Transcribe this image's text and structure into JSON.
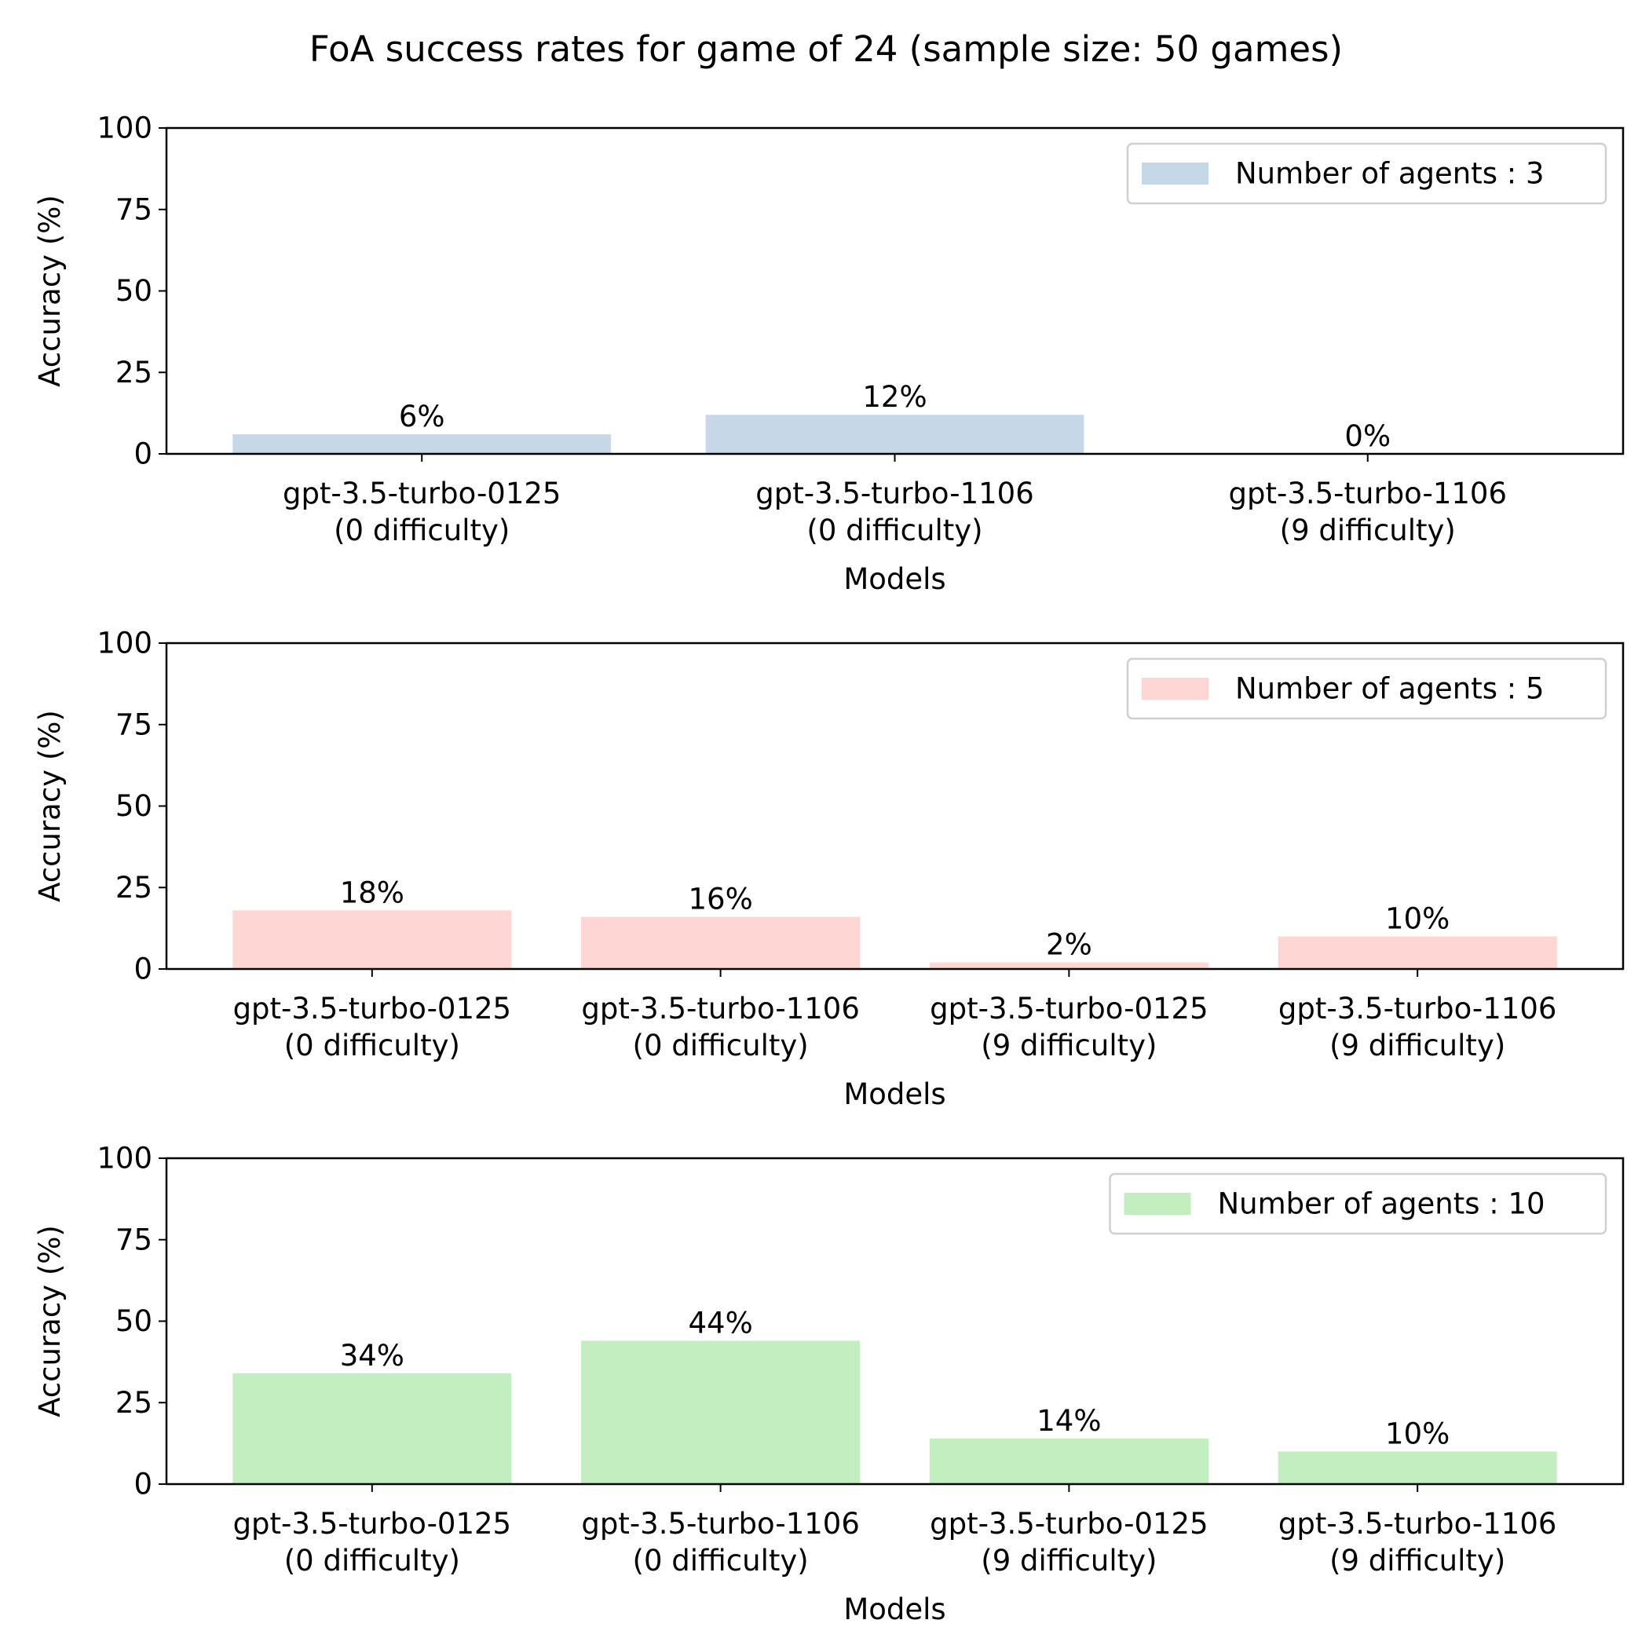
{
  "figure": {
    "title": "FoA success rates for game of 24 (sample size: 50 games)"
  },
  "chart_data": [
    {
      "type": "bar",
      "title": "",
      "xlabel": "Models",
      "ylabel": "Accuracy (%)",
      "ylim": [
        0,
        100
      ],
      "yticks": [
        "0",
        "25",
        "50",
        "75",
        "100"
      ],
      "grid": false,
      "legend_position": "top-right",
      "categories": [
        [
          "gpt-3.5-turbo-0125",
          "(0 difficulty)"
        ],
        [
          "gpt-3.5-turbo-1106",
          "(0 difficulty)"
        ],
        [
          "gpt-3.5-turbo-1106",
          "(9 difficulty)"
        ]
      ],
      "series": [
        {
          "name": "Number of agents : 3",
          "color": "#c6d8e8",
          "values": [
            6,
            12,
            0
          ],
          "labels": [
            "6%",
            "12%",
            "0%"
          ]
        }
      ]
    },
    {
      "type": "bar",
      "title": "",
      "xlabel": "Models",
      "ylabel": "Accuracy (%)",
      "ylim": [
        0,
        100
      ],
      "yticks": [
        "0",
        "25",
        "50",
        "75",
        "100"
      ],
      "grid": false,
      "legend_position": "top-right",
      "categories": [
        [
          "gpt-3.5-turbo-0125",
          "(0 difficulty)"
        ],
        [
          "gpt-3.5-turbo-1106",
          "(0 difficulty)"
        ],
        [
          "gpt-3.5-turbo-0125",
          "(9 difficulty)"
        ],
        [
          "gpt-3.5-turbo-1106",
          "(9 difficulty)"
        ]
      ],
      "series": [
        {
          "name": "Number of agents : 5",
          "color": "#fed7d4",
          "values": [
            18,
            16,
            2,
            10
          ],
          "labels": [
            "18%",
            "16%",
            "2%",
            "10%"
          ]
        }
      ]
    },
    {
      "type": "bar",
      "title": "",
      "xlabel": "Models",
      "ylabel": "Accuracy (%)",
      "ylim": [
        0,
        100
      ],
      "yticks": [
        "0",
        "25",
        "50",
        "75",
        "100"
      ],
      "grid": false,
      "legend_position": "top-right",
      "categories": [
        [
          "gpt-3.5-turbo-0125",
          "(0 difficulty)"
        ],
        [
          "gpt-3.5-turbo-1106",
          "(0 difficulty)"
        ],
        [
          "gpt-3.5-turbo-0125",
          "(9 difficulty)"
        ],
        [
          "gpt-3.5-turbo-1106",
          "(9 difficulty)"
        ]
      ],
      "series": [
        {
          "name": "Number of agents : 10",
          "color": "#c2eec0",
          "values": [
            34,
            44,
            14,
            10
          ],
          "labels": [
            "34%",
            "44%",
            "14%",
            "10%"
          ]
        }
      ]
    }
  ]
}
